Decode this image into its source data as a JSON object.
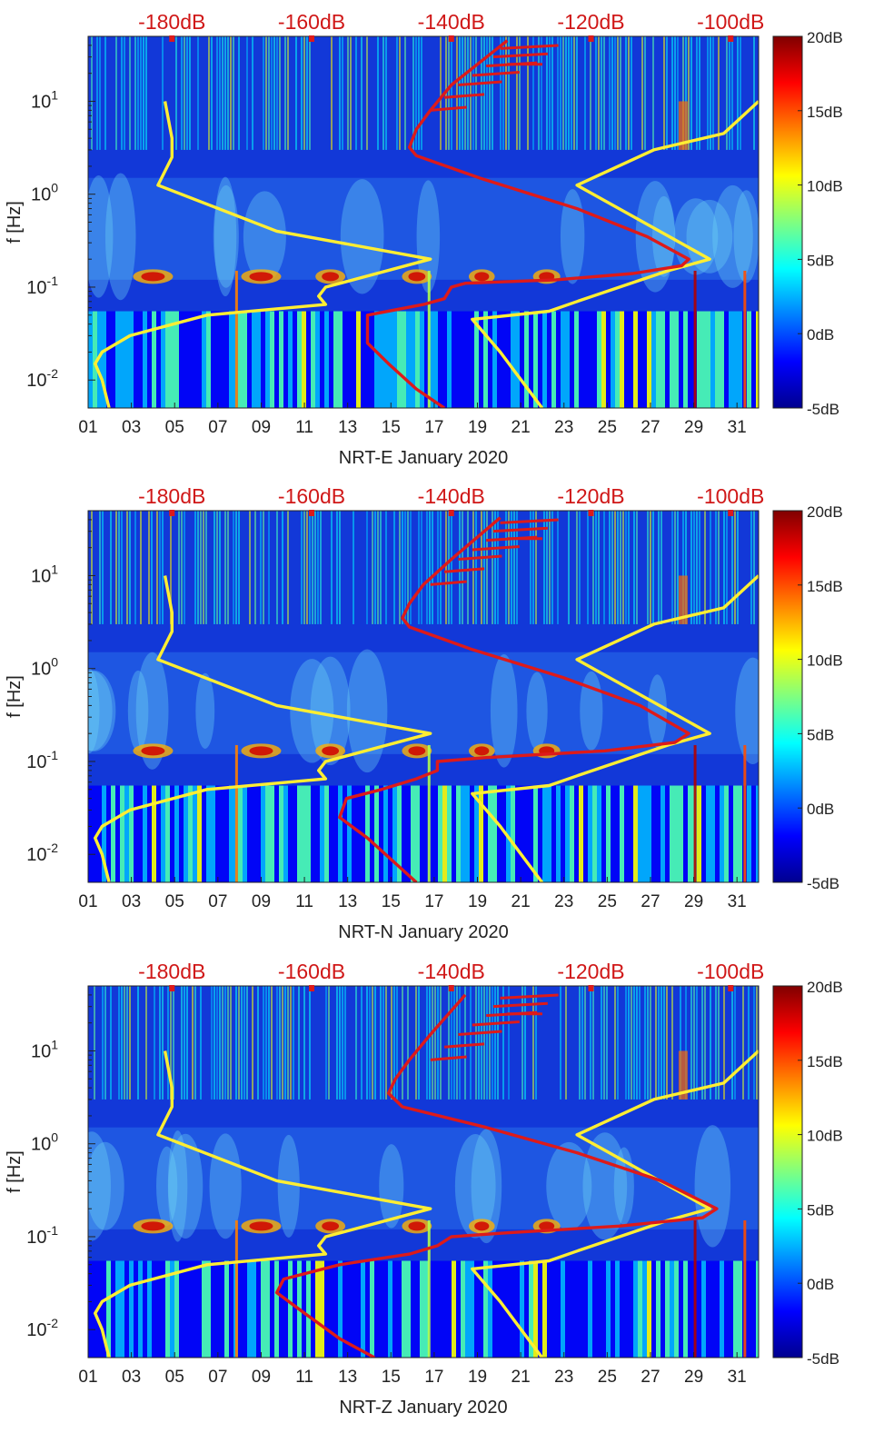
{
  "chart_data": [
    {
      "type": "heatmap",
      "title": "",
      "xlabel": "NRT-E January 2020",
      "ylabel": "f [Hz]",
      "x_ticks": [
        "01",
        "03",
        "05",
        "07",
        "09",
        "11",
        "13",
        "15",
        "17",
        "19",
        "21",
        "23",
        "25",
        "27",
        "29",
        "31"
      ],
      "xlim": [
        1,
        32
      ],
      "y_ticks": [
        {
          "value": 0.01,
          "base": "10",
          "exp": "-2"
        },
        {
          "value": 0.1,
          "base": "10",
          "exp": "-1"
        },
        {
          "value": 1,
          "base": "10",
          "exp": "0"
        },
        {
          "value": 10,
          "base": "10",
          "exp": "1"
        }
      ],
      "ylim": [
        0.005,
        50
      ],
      "top_axis_labels": [
        "-180dB",
        "-160dB",
        "-140dB",
        "-120dB",
        "-100dB"
      ],
      "top_axis_values": [
        -180,
        -160,
        -140,
        -120,
        -100
      ],
      "top_axis_range": [
        -192,
        -96
      ],
      "colorbar": {
        "labels": [
          "20dB",
          "15dB",
          "10dB",
          "5dB",
          "0dB",
          "-5dB"
        ],
        "values": [
          20,
          15,
          10,
          5,
          0,
          -5
        ],
        "range": [
          -5,
          20
        ]
      },
      "series": [
        {
          "name": "noise model bounds (yellow)",
          "color": "#ffee33",
          "segments": [
            [
              [
                -181,
                10
              ],
              [
                -180,
                4
              ],
              [
                -180,
                2.5
              ],
              [
                -182,
                1.25
              ],
              [
                -165,
                0.4
              ],
              [
                -143,
                0.2
              ],
              [
                -158,
                0.1
              ],
              [
                -159,
                0.08
              ],
              [
                -158,
                0.065
              ],
              [
                -175,
                0.05
              ],
              [
                -186,
                0.03
              ],
              [
                -190,
                0.02
              ],
              [
                -191,
                0.015
              ],
              [
                -190,
                0.01
              ],
              [
                -189,
                0.005
              ]
            ],
            [
              [
                -96,
                10
              ],
              [
                -101,
                4.5
              ],
              [
                -111,
                3
              ],
              [
                -122,
                1.25
              ],
              [
                -103,
                0.2
              ],
              [
                -109,
                0.15
              ],
              [
                -122,
                0.07
              ],
              [
                -126,
                0.055
              ],
              [
                -137,
                0.045
              ],
              [
                -133,
                0.02
              ],
              [
                -130,
                0.01
              ],
              [
                -127,
                0.005
              ]
            ]
          ]
        },
        {
          "name": "measured (red)",
          "color": "#dd1a1a",
          "segments": [
            [
              [
                -132,
                45
              ],
              [
                -140,
                15
              ],
              [
                -143,
                8
              ],
              [
                -145,
                5
              ],
              [
                -146,
                3.2
              ],
              [
                -145,
                2.6
              ],
              [
                -136,
                1.5
              ],
              [
                -122,
                0.7
              ],
              [
                -112,
                0.35
              ],
              [
                -106,
                0.2
              ],
              [
                -107,
                0.17
              ],
              [
                -114,
                0.14
              ],
              [
                -125,
                0.12
              ],
              [
                -138,
                0.11
              ],
              [
                -140,
                0.1
              ],
              [
                -141,
                0.075
              ],
              [
                -144,
                0.065
              ],
              [
                -152,
                0.05
              ],
              [
                -152,
                0.04
              ],
              [
                -152,
                0.025
              ],
              [
                -149,
                0.015
              ],
              [
                -145,
                0.008
              ],
              [
                -141,
                0.005
              ]
            ]
          ]
        }
      ]
    },
    {
      "type": "heatmap",
      "title": "",
      "xlabel": "NRT-N January 2020",
      "ylabel": "f [Hz]",
      "x_ticks": [
        "01",
        "03",
        "05",
        "07",
        "09",
        "11",
        "13",
        "15",
        "17",
        "19",
        "21",
        "23",
        "25",
        "27",
        "29",
        "31"
      ],
      "xlim": [
        1,
        32
      ],
      "y_ticks": [
        {
          "value": 0.01,
          "base": "10",
          "exp": "-2"
        },
        {
          "value": 0.1,
          "base": "10",
          "exp": "-1"
        },
        {
          "value": 1,
          "base": "10",
          "exp": "0"
        },
        {
          "value": 10,
          "base": "10",
          "exp": "1"
        }
      ],
      "ylim": [
        0.005,
        50
      ],
      "top_axis_labels": [
        "-180dB",
        "-160dB",
        "-140dB",
        "-120dB",
        "-100dB"
      ],
      "top_axis_values": [
        -180,
        -160,
        -140,
        -120,
        -100
      ],
      "top_axis_range": [
        -192,
        -96
      ],
      "colorbar": {
        "labels": [
          "20dB",
          "15dB",
          "10dB",
          "5dB",
          "0dB",
          "-5dB"
        ],
        "values": [
          20,
          15,
          10,
          5,
          0,
          -5
        ],
        "range": [
          -5,
          20
        ]
      },
      "series": [
        {
          "name": "noise model bounds (yellow)",
          "color": "#ffee33",
          "segments": [
            [
              [
                -181,
                10
              ],
              [
                -180,
                4
              ],
              [
                -180,
                2.5
              ],
              [
                -182,
                1.25
              ],
              [
                -165,
                0.4
              ],
              [
                -143,
                0.2
              ],
              [
                -158,
                0.1
              ],
              [
                -159,
                0.08
              ],
              [
                -158,
                0.065
              ],
              [
                -175,
                0.05
              ],
              [
                -186,
                0.03
              ],
              [
                -190,
                0.02
              ],
              [
                -191,
                0.015
              ],
              [
                -190,
                0.01
              ],
              [
                -189,
                0.005
              ]
            ],
            [
              [
                -96,
                10
              ],
              [
                -101,
                4.5
              ],
              [
                -111,
                3
              ],
              [
                -122,
                1.25
              ],
              [
                -103,
                0.2
              ],
              [
                -109,
                0.15
              ],
              [
                -122,
                0.07
              ],
              [
                -126,
                0.055
              ],
              [
                -137,
                0.045
              ],
              [
                -133,
                0.02
              ],
              [
                -130,
                0.01
              ],
              [
                -127,
                0.005
              ]
            ]
          ]
        },
        {
          "name": "measured (red)",
          "color": "#dd1a1a",
          "segments": [
            [
              [
                -133,
                42
              ],
              [
                -140,
                15
              ],
              [
                -144,
                8
              ],
              [
                -146,
                5
              ],
              [
                -147,
                3.5
              ],
              [
                -146,
                2.8
              ],
              [
                -137,
                1.6
              ],
              [
                -124,
                0.8
              ],
              [
                -113,
                0.4
              ],
              [
                -106,
                0.2
              ],
              [
                -108,
                0.16
              ],
              [
                -118,
                0.13
              ],
              [
                -135,
                0.11
              ],
              [
                -142,
                0.1
              ],
              [
                -142,
                0.08
              ],
              [
                -145,
                0.065
              ],
              [
                -150,
                0.05
              ],
              [
                -155,
                0.04
              ],
              [
                -156,
                0.025
              ],
              [
                -152,
                0.015
              ],
              [
                -148,
                0.008
              ],
              [
                -145,
                0.005
              ]
            ]
          ]
        }
      ]
    },
    {
      "type": "heatmap",
      "title": "",
      "xlabel": "NRT-Z January 2020",
      "ylabel": "f [Hz]",
      "x_ticks": [
        "01",
        "03",
        "05",
        "07",
        "09",
        "11",
        "13",
        "15",
        "17",
        "19",
        "21",
        "23",
        "25",
        "27",
        "29",
        "31"
      ],
      "xlim": [
        1,
        32
      ],
      "y_ticks": [
        {
          "value": 0.01,
          "base": "10",
          "exp": "-2"
        },
        {
          "value": 0.1,
          "base": "10",
          "exp": "-1"
        },
        {
          "value": 1,
          "base": "10",
          "exp": "0"
        },
        {
          "value": 10,
          "base": "10",
          "exp": "1"
        }
      ],
      "ylim": [
        0.005,
        50
      ],
      "top_axis_labels": [
        "-180dB",
        "-160dB",
        "-140dB",
        "-120dB",
        "-100dB"
      ],
      "top_axis_values": [
        -180,
        -160,
        -140,
        -120,
        -100
      ],
      "top_axis_range": [
        -192,
        -96
      ],
      "colorbar": {
        "labels": [
          "20dB",
          "15dB",
          "10dB",
          "5dB",
          "0dB",
          "-5dB"
        ],
        "values": [
          20,
          15,
          10,
          5,
          0,
          -5
        ],
        "range": [
          -5,
          20
        ]
      },
      "series": [
        {
          "name": "noise model bounds (yellow)",
          "color": "#ffee33",
          "segments": [
            [
              [
                -181,
                10
              ],
              [
                -180,
                4
              ],
              [
                -180,
                2.5
              ],
              [
                -182,
                1.25
              ],
              [
                -165,
                0.4
              ],
              [
                -143,
                0.2
              ],
              [
                -158,
                0.1
              ],
              [
                -159,
                0.08
              ],
              [
                -158,
                0.065
              ],
              [
                -175,
                0.05
              ],
              [
                -186,
                0.03
              ],
              [
                -190,
                0.02
              ],
              [
                -191,
                0.015
              ],
              [
                -190,
                0.01
              ],
              [
                -189,
                0.005
              ]
            ],
            [
              [
                -96,
                10
              ],
              [
                -101,
                4.5
              ],
              [
                -111,
                3
              ],
              [
                -122,
                1.25
              ],
              [
                -103,
                0.2
              ],
              [
                -109,
                0.15
              ],
              [
                -122,
                0.07
              ],
              [
                -126,
                0.055
              ],
              [
                -137,
                0.045
              ],
              [
                -133,
                0.02
              ],
              [
                -130,
                0.01
              ],
              [
                -127,
                0.005
              ]
            ]
          ]
        },
        {
          "name": "measured (red)",
          "color": "#dd1a1a",
          "segments": [
            [
              [
                -138,
                40
              ],
              [
                -143,
                15
              ],
              [
                -146,
                8
              ],
              [
                -148,
                5
              ],
              [
                -149,
                3.5
              ],
              [
                -147,
                2.5
              ],
              [
                -135,
                1.5
              ],
              [
                -122,
                0.8
              ],
              [
                -110,
                0.4
              ],
              [
                -102,
                0.2
              ],
              [
                -104,
                0.16
              ],
              [
                -116,
                0.13
              ],
              [
                -132,
                0.11
              ],
              [
                -140,
                0.1
              ],
              [
                -142,
                0.08
              ],
              [
                -146,
                0.065
              ],
              [
                -156,
                0.05
              ],
              [
                -164,
                0.035
              ],
              [
                -165,
                0.025
              ],
              [
                -161,
                0.015
              ],
              [
                -156,
                0.008
              ],
              [
                -151,
                0.005
              ]
            ]
          ]
        }
      ]
    }
  ]
}
